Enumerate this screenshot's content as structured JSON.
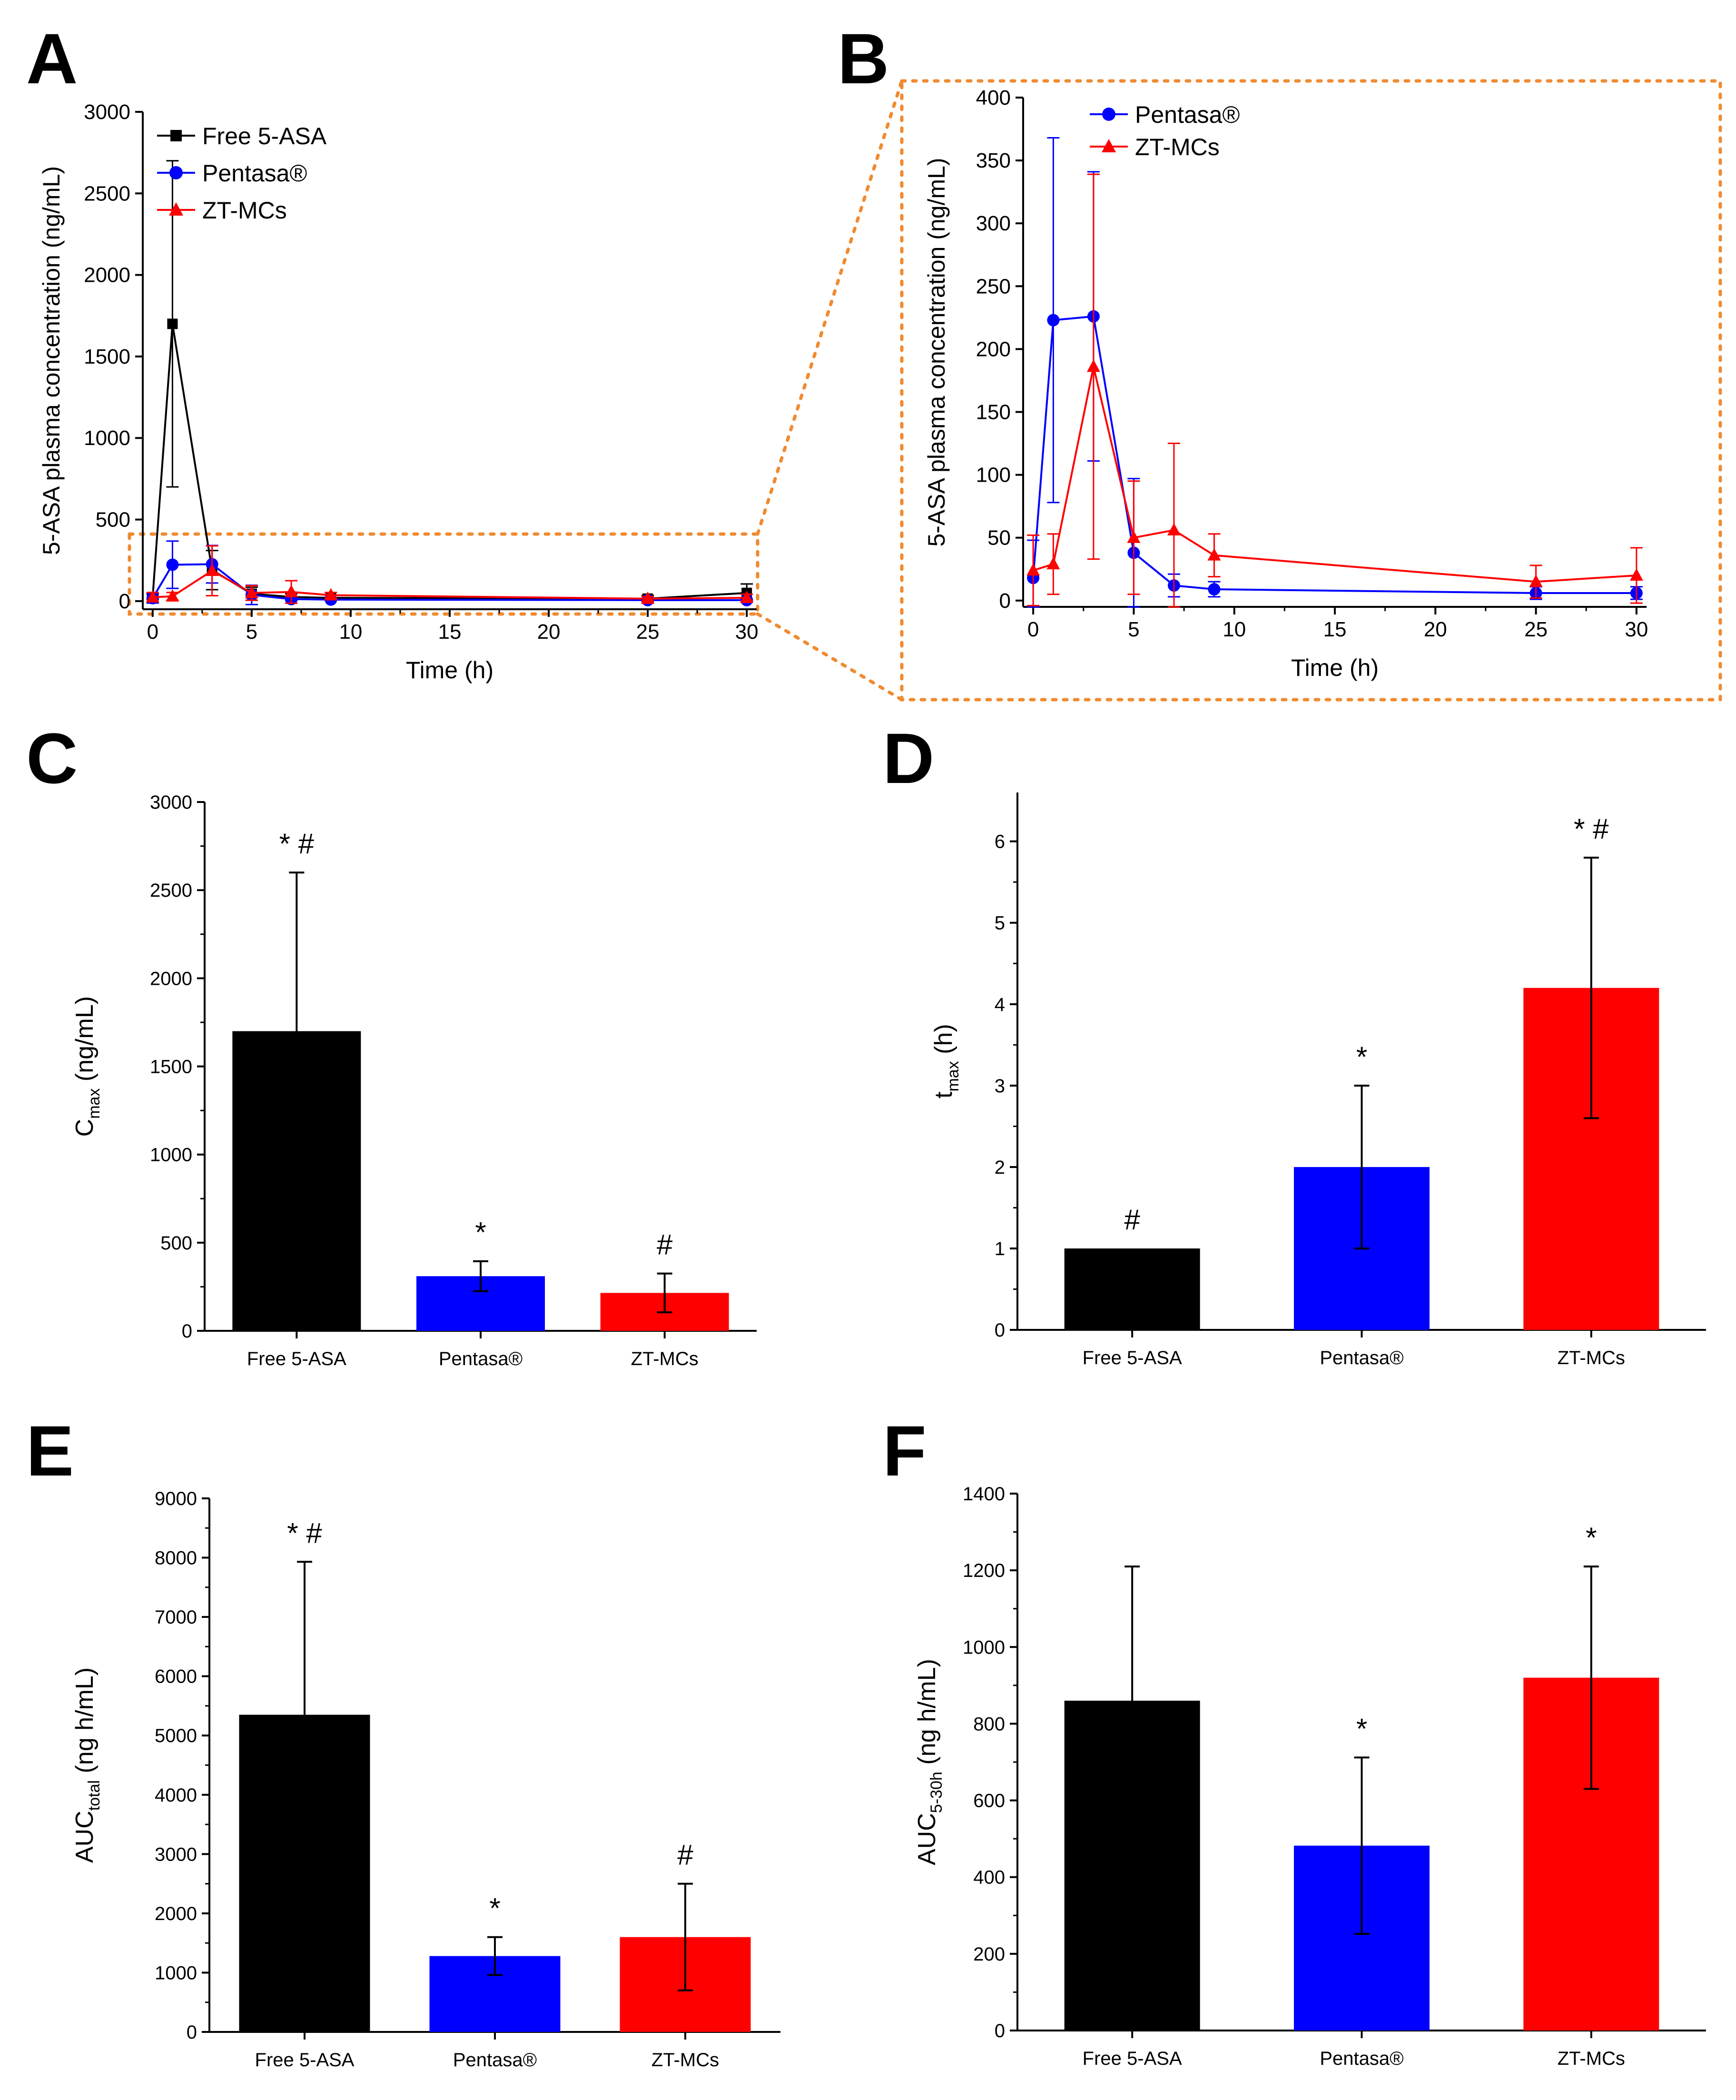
{
  "panel_letters": [
    "A",
    "B",
    "C",
    "D",
    "E",
    "F"
  ],
  "colors": {
    "free": "#000000",
    "pentasa": "#0000ff",
    "zt": "#ff0000",
    "zoom": "#f08a30"
  },
  "chart_data": [
    {
      "id": "A",
      "type": "line",
      "xlabel": "Time (h)",
      "ylabel": "5-ASA plasma concentration (ng/mL)",
      "xlim": [
        -0.5,
        30.5
      ],
      "ylim": [
        -50,
        3000
      ],
      "xticks": [
        0,
        5,
        10,
        15,
        20,
        25,
        30
      ],
      "yticks": [
        0,
        500,
        1000,
        1500,
        2000,
        2500,
        3000
      ],
      "legend_position": "top-left",
      "series": [
        {
          "name": "Free 5-ASA",
          "color": "#000000",
          "marker": "square",
          "x": [
            0,
            1,
            3,
            5,
            7,
            9,
            25,
            30
          ],
          "y": [
            25,
            1700,
            190,
            45,
            25,
            20,
            15,
            50
          ],
          "err": [
            15,
            1000,
            120,
            40,
            20,
            15,
            20,
            55
          ]
        },
        {
          "name": "Pentasa®",
          "color": "#0000ff",
          "marker": "circle",
          "x": [
            0,
            1,
            3,
            5,
            7,
            9,
            25,
            30
          ],
          "y": [
            18,
            223,
            226,
            38,
            12,
            9,
            6,
            6
          ],
          "err": [
            30,
            145,
            115,
            59,
            9,
            6,
            5,
            5
          ]
        },
        {
          "name": "ZT-MCs",
          "color": "#ff0000",
          "marker": "triangle",
          "x": [
            0,
            1,
            3,
            5,
            7,
            9,
            25,
            30
          ],
          "y": [
            24,
            29,
            186,
            50,
            56,
            36,
            15,
            20
          ],
          "err": [
            28,
            24,
            153,
            45,
            69,
            17,
            13,
            22
          ]
        }
      ]
    },
    {
      "id": "B",
      "type": "line",
      "xlabel": "Time (h)",
      "ylabel": "5-ASA plasma concentration (ng/mL)",
      "xlim": [
        -0.5,
        30.5
      ],
      "ylim": [
        -5,
        400
      ],
      "xticks": [
        0,
        5,
        10,
        15,
        20,
        25,
        30
      ],
      "yticks": [
        0,
        50,
        100,
        150,
        200,
        250,
        300,
        350,
        400
      ],
      "legend_position": "top-left",
      "series": [
        {
          "name": "Pentasa®",
          "color": "#0000ff",
          "marker": "circle",
          "x": [
            0,
            1,
            3,
            5,
            7,
            9,
            25,
            30
          ],
          "y": [
            18,
            223,
            226,
            38,
            12,
            9,
            6,
            6
          ],
          "err": [
            30,
            145,
            115,
            59,
            9,
            6,
            5,
            5
          ]
        },
        {
          "name": "ZT-MCs",
          "color": "#ff0000",
          "marker": "triangle",
          "x": [
            0,
            1,
            3,
            5,
            7,
            9,
            25,
            30
          ],
          "y": [
            24,
            29,
            186,
            50,
            56,
            36,
            15,
            20
          ],
          "err": [
            28,
            24,
            153,
            45,
            69,
            17,
            13,
            22
          ]
        }
      ]
    },
    {
      "id": "C",
      "type": "bar",
      "ylabel_main": "C",
      "ylabel_sub": "max",
      "ylabel_rest": " (ng/mL)",
      "categories": [
        "Free 5-ASA",
        "Pentasa®",
        "ZT-MCs"
      ],
      "values": [
        1700,
        310,
        215
      ],
      "errors": [
        900,
        85,
        110
      ],
      "bar_colors": [
        "#000000",
        "#0000ff",
        "#ff0000"
      ],
      "annotations": [
        "* #",
        "*",
        "#"
      ],
      "ylim": [
        0,
        3000
      ],
      "yticks": [
        0,
        500,
        1000,
        1500,
        2000,
        2500,
        3000
      ]
    },
    {
      "id": "D",
      "type": "bar",
      "ylabel_main": "t",
      "ylabel_sub": "max",
      "ylabel_rest": " (h)",
      "categories": [
        "Free 5-ASA",
        "Pentasa®",
        "ZT-MCs"
      ],
      "values": [
        1,
        2,
        4.2
      ],
      "errors": [
        0,
        1,
        1.6
      ],
      "bar_colors": [
        "#000000",
        "#0000ff",
        "#ff0000"
      ],
      "annotations": [
        "#",
        "*",
        "* #"
      ],
      "ylim": [
        0,
        6.6
      ],
      "yticks": [
        0,
        1,
        2,
        3,
        4,
        5,
        6
      ]
    },
    {
      "id": "E",
      "type": "bar",
      "ylabel_main": "AUC",
      "ylabel_sub": "total",
      "ylabel_rest": " (ng h/mL)",
      "categories": [
        "Free 5-ASA",
        "Pentasa®",
        "ZT-MCs"
      ],
      "values": [
        5350,
        1280,
        1600
      ],
      "errors": [
        2580,
        320,
        900
      ],
      "bar_colors": [
        "#000000",
        "#0000ff",
        "#ff0000"
      ],
      "annotations": [
        "* #",
        "*",
        "#"
      ],
      "ylim": [
        0,
        9000
      ],
      "yticks": [
        0,
        1000,
        2000,
        3000,
        4000,
        5000,
        6000,
        7000,
        8000,
        9000
      ]
    },
    {
      "id": "F",
      "type": "bar",
      "ylabel_main": "AUC",
      "ylabel_sub": "5-30h",
      "ylabel_rest": " (ng h/mL)",
      "categories": [
        "Free 5-ASA",
        "Pentasa®",
        "ZT-MCs"
      ],
      "values": [
        860,
        482,
        920
      ],
      "errors": [
        350,
        230,
        290
      ],
      "bar_colors": [
        "#000000",
        "#0000ff",
        "#ff0000"
      ],
      "annotations": [
        "",
        "*",
        "*"
      ],
      "ylim": [
        0,
        1400
      ],
      "yticks": [
        0,
        200,
        400,
        600,
        800,
        1000,
        1200,
        1400
      ]
    }
  ]
}
